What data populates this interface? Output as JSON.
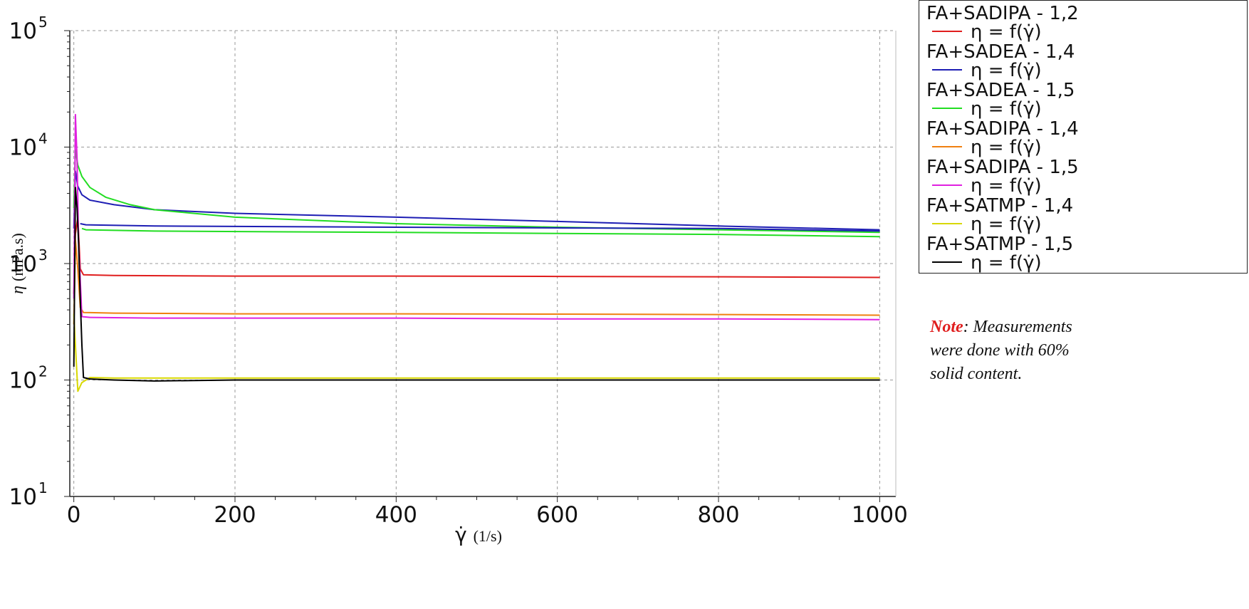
{
  "chart_data": {
    "type": "line",
    "xlabel_symbol": "γ̇",
    "xlabel_unit": "(1/s)",
    "ylabel_symbol": "η",
    "ylabel_unit": "(mPa.s)",
    "xlim": [
      -5,
      1020
    ],
    "ylim_log10": [
      1,
      5
    ],
    "yscale": "log",
    "grid": true,
    "legend_position": "top-right",
    "x_ticks": [
      "0",
      "200",
      "400",
      "600",
      "800",
      "1000"
    ],
    "x_tick_values": [
      0,
      200,
      400,
      600,
      800,
      1000
    ],
    "y_ticks": [
      {
        "base": "10",
        "exp": "1",
        "value": 10
      },
      {
        "base": "10",
        "exp": "2",
        "value": 100
      },
      {
        "base": "10",
        "exp": "3",
        "value": 1000
      },
      {
        "base": "10",
        "exp": "4",
        "value": 10000
      },
      {
        "base": "10",
        "exp": "5",
        "value": 100000
      }
    ],
    "series": [
      {
        "name": "FA+SADIPA - 1,2",
        "subtitle": "η = f(γ̇)",
        "color": "#e01e1e",
        "x": [
          0,
          2,
          5,
          8,
          12,
          50,
          200,
          400,
          600,
          800,
          1000
        ],
        "y": [
          550,
          1800,
          2500,
          900,
          800,
          790,
          780,
          780,
          775,
          770,
          760
        ]
      },
      {
        "name": "FA+SADEA - 1,4",
        "subtitle": "η = f(γ̇)",
        "color": "#1e1eb4",
        "x": [
          0,
          2,
          5,
          10,
          20,
          50,
          100,
          200,
          400,
          600,
          800,
          1000
        ],
        "y": [
          2000,
          6200,
          4600,
          3900,
          3500,
          3200,
          2900,
          2700,
          2500,
          2300,
          2100,
          1950
        ]
      },
      {
        "name": "FA+SADEA - 1,5",
        "subtitle": "η = f(γ̇)",
        "color": "#22dd22",
        "x": [
          0,
          2,
          5,
          10,
          20,
          40,
          70,
          100,
          200,
          400,
          600,
          800,
          1000
        ],
        "y": [
          3000,
          9500,
          7000,
          5600,
          4500,
          3700,
          3200,
          2900,
          2500,
          2200,
          2050,
          1950,
          1850
        ]
      },
      {
        "name": "FA+SADIPA - 1,4",
        "subtitle": "η = f(γ̇)",
        "color": "#f08010",
        "x": [
          0,
          2,
          5,
          8,
          12,
          50,
          200,
          400,
          600,
          800,
          1000
        ],
        "y": [
          300,
          1600,
          900,
          420,
          380,
          375,
          370,
          370,
          368,
          365,
          360
        ]
      },
      {
        "name": "FA+SADIPA - 1,5",
        "subtitle": "η = f(γ̇)",
        "color": "#e020e0",
        "x": [
          0,
          2,
          4,
          6,
          10,
          20,
          100,
          200,
          400,
          600,
          800,
          1000
        ],
        "y": [
          500,
          19000,
          8000,
          1500,
          350,
          345,
          340,
          340,
          340,
          335,
          335,
          330
        ]
      },
      {
        "name": "FA+SATMP - 1,4",
        "subtitle": "η = f(γ̇)",
        "color": "#d8d800",
        "x": [
          0,
          2,
          5,
          10,
          20,
          50,
          200,
          400,
          600,
          800,
          1000
        ],
        "y": [
          370,
          200,
          80,
          95,
          105,
          104,
          104,
          104,
          104,
          104,
          104
        ]
      },
      {
        "name": "FA+SATMP - 1,5",
        "subtitle": "η = f(γ̇)",
        "color": "#000000",
        "x": [
          0,
          2,
          4,
          6,
          8,
          10,
          12,
          20,
          50,
          100,
          200,
          400,
          600,
          800,
          1000
        ],
        "y": [
          130,
          4500,
          3000,
          1500,
          500,
          200,
          105,
          102,
          100,
          98,
          100,
          100,
          100,
          100,
          100
        ]
      },
      {
        "name": "FA+SADEA - 1,4",
        "subtitle": "η = f(γ̇)",
        "color": "#1e1eb4",
        "x": [
          8,
          15,
          100,
          400,
          800,
          1000
        ],
        "y": [
          2200,
          2150,
          2100,
          2050,
          2000,
          1900
        ],
        "in_legend": false
      },
      {
        "name": "FA+SADEA - 1,5",
        "subtitle": "η = f(γ̇)",
        "color": "#22dd22",
        "x": [
          10,
          15,
          100,
          400,
          800,
          1000
        ],
        "y": [
          2000,
          1950,
          1900,
          1850,
          1780,
          1700
        ],
        "in_legend": false
      }
    ]
  },
  "legend": {
    "entries": [
      {
        "name": "FA+SADIPA - 1,2",
        "subtitle": "η = f(γ̇)",
        "color": "#e01e1e"
      },
      {
        "name": "FA+SADEA - 1,4",
        "subtitle": "η = f(γ̇)",
        "color": "#1e1eb4"
      },
      {
        "name": "FA+SADEA - 1,5",
        "subtitle": "η = f(γ̇)",
        "color": "#22dd22"
      },
      {
        "name": "FA+SADIPA - 1,4",
        "subtitle": "η = f(γ̇)",
        "color": "#f08010"
      },
      {
        "name": "FA+SADIPA - 1,5",
        "subtitle": "η = f(γ̇)",
        "color": "#e020e0"
      },
      {
        "name": "FA+SATMP - 1,4",
        "subtitle": "η = f(γ̇)",
        "color": "#d8d800"
      },
      {
        "name": "FA+SATMP - 1,5",
        "subtitle": "η = f(γ̇)",
        "color": "#000000"
      }
    ]
  },
  "note": {
    "key": "Note",
    "text": ": Measurements were done with 60% solid content."
  }
}
